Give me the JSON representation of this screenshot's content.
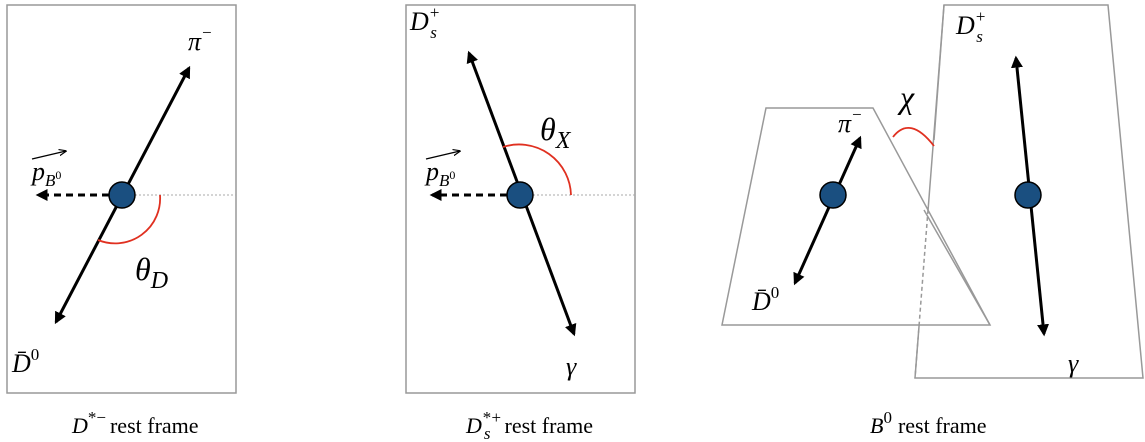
{
  "panels": [
    {
      "caption": {
        "base": "D",
        "sup": "*−",
        "text": "rest frame"
      },
      "labels": {
        "top": {
          "base": "π",
          "sup": "−"
        },
        "momentum": {
          "base": "p",
          "sub": "B",
          "sub_sup": "0"
        },
        "angle": {
          "base": "θ",
          "sub": "D"
        },
        "bottom": {
          "base": "D̄",
          "sup": "0"
        }
      }
    },
    {
      "caption": {
        "base": "D",
        "sub": "s",
        "sup": "*+",
        "text": "rest frame"
      },
      "labels": {
        "top": {
          "base": "D",
          "sub": "s",
          "sup": "+"
        },
        "momentum": {
          "base": "p",
          "sub": "B",
          "sub_sup": "0"
        },
        "angle": {
          "base": "θ",
          "sub": "X"
        },
        "bottom": {
          "base": "γ"
        }
      }
    },
    {
      "caption": {
        "base": "B",
        "sup": "0",
        "text": "rest frame"
      },
      "labels": {
        "angle": {
          "base": "χ"
        },
        "left_top": {
          "base": "π",
          "sup": "−"
        },
        "left_bottom": {
          "base": "D̄",
          "sup": "0"
        },
        "right_top": {
          "base": "D",
          "sub": "s",
          "sup": "+"
        },
        "right_bottom": {
          "base": "γ"
        }
      }
    }
  ]
}
